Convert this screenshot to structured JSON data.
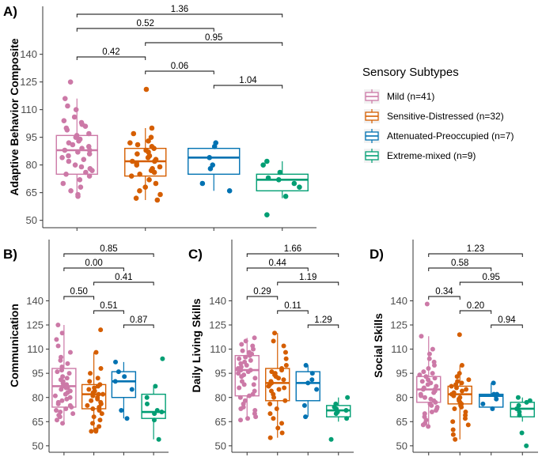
{
  "legend": {
    "title": "Sensory Subtypes",
    "items": [
      {
        "label": "Mild (n=41)",
        "color": "#CC79A7"
      },
      {
        "label": "Sensitive-Distressed (n=32)",
        "color": "#D55E00"
      },
      {
        "label": "Attenuated-Preoccupied (n=7)",
        "color": "#0072B2"
      },
      {
        "label": "Extreme-mixed (n=9)",
        "color": "#009E73"
      }
    ]
  },
  "chart_data": [
    {
      "type": "box",
      "panel": "A)",
      "ylabel": "Adaptive Behavior Composite",
      "yticks": [
        50,
        65,
        80,
        95,
        110,
        125,
        140
      ],
      "ylim": [
        46,
        166
      ],
      "groups": [
        "Mild",
        "Sensitive-Distressed",
        "Attenuated-Preoccupied",
        "Extreme-mixed"
      ],
      "boxes": [
        {
          "q1": 75,
          "median": 88,
          "q3": 96,
          "whisker_low": 63,
          "whisker_high": 116,
          "points": [
            125,
            116,
            112,
            110,
            106,
            104,
            103,
            102,
            101,
            100,
            99,
            97,
            96,
            95,
            94,
            93,
            92,
            91,
            90,
            89,
            88,
            88,
            87,
            86,
            85,
            84,
            83,
            82,
            80,
            79,
            78,
            77,
            76,
            75,
            74,
            72,
            70,
            68,
            66,
            64,
            63
          ]
        },
        {
          "q1": 74,
          "median": 82,
          "q3": 89,
          "whisker_low": 61,
          "whisker_high": 100,
          "points": [
            121,
            100,
            97,
            95,
            93,
            92,
            91,
            90,
            89,
            88,
            87,
            86,
            85,
            84,
            83,
            82,
            82,
            81,
            80,
            79,
            78,
            77,
            76,
            75,
            74,
            72,
            70,
            68,
            66,
            64,
            62,
            61
          ]
        },
        {
          "q1": 75,
          "median": 84,
          "q3": 89,
          "whisker_low": 66,
          "whisker_high": 92,
          "points": [
            92,
            90,
            84,
            80,
            78,
            70,
            66
          ]
        },
        {
          "q1": 66,
          "median": 72,
          "q3": 75,
          "whisker_low": 62,
          "whisker_high": 82,
          "points": [
            82,
            80,
            76,
            73,
            72,
            70,
            68,
            63,
            53
          ]
        }
      ],
      "comparisons": [
        {
          "from": 0,
          "to": 3,
          "label": "1.36"
        },
        {
          "from": 0,
          "to": 2,
          "label": "0.52"
        },
        {
          "from": 1,
          "to": 3,
          "label": "0.95"
        },
        {
          "from": 0,
          "to": 1,
          "label": "0.42"
        },
        {
          "from": 1,
          "to": 2,
          "label": "0.06"
        },
        {
          "from": 2,
          "to": 3,
          "label": "1.04"
        }
      ]
    },
    {
      "type": "box",
      "panel": "B)",
      "ylabel": "Communication",
      "yticks": [
        50,
        65,
        80,
        95,
        110,
        125,
        140
      ],
      "ylim": [
        46,
        178
      ],
      "groups": [
        "Mild",
        "Sensitive-Distressed",
        "Attenuated-Preoccupied",
        "Extreme-mixed"
      ],
      "boxes": [
        {
          "q1": 74,
          "median": 87,
          "q3": 98,
          "whisker_low": 64,
          "whisker_high": 125,
          "points": [
            125,
            120,
            116,
            112,
            108,
            105,
            103,
            101,
            99,
            97,
            96,
            95,
            93,
            92,
            91,
            90,
            89,
            88,
            87,
            86,
            86,
            85,
            84,
            83,
            82,
            81,
            80,
            79,
            78,
            77,
            76,
            75,
            74,
            73,
            72,
            71,
            70,
            69,
            68,
            66,
            64
          ]
        },
        {
          "q1": 73,
          "median": 82,
          "q3": 88,
          "whisker_low": 59,
          "whisker_high": 108,
          "points": [
            122,
            108,
            98,
            95,
            92,
            90,
            88,
            87,
            86,
            85,
            84,
            83,
            82,
            82,
            81,
            80,
            79,
            78,
            77,
            76,
            75,
            74,
            73,
            72,
            70,
            68,
            66,
            64,
            62,
            60,
            59,
            59
          ]
        },
        {
          "q1": 80,
          "median": 90,
          "q3": 96,
          "whisker_low": 67,
          "whisker_high": 102,
          "points": [
            102,
            96,
            93,
            90,
            85,
            72,
            67
          ]
        },
        {
          "q1": 67,
          "median": 71,
          "q3": 82,
          "whisker_low": 54,
          "whisker_high": 87,
          "points": [
            104,
            87,
            80,
            76,
            72,
            71,
            70,
            66,
            54
          ]
        }
      ],
      "comparisons": [
        {
          "from": 0,
          "to": 3,
          "label": "0.85"
        },
        {
          "from": 0,
          "to": 2,
          "label": "0.00"
        },
        {
          "from": 1,
          "to": 3,
          "label": "0.41"
        },
        {
          "from": 0,
          "to": 1,
          "label": "0.50"
        },
        {
          "from": 1,
          "to": 2,
          "label": "0.51"
        },
        {
          "from": 2,
          "to": 3,
          "label": "0.87"
        }
      ]
    },
    {
      "type": "box",
      "panel": "C)",
      "ylabel": "Daily Living Skills",
      "yticks": [
        50,
        65,
        80,
        95,
        110,
        125,
        140
      ],
      "ylim": [
        46,
        178
      ],
      "groups": [
        "Mild",
        "Sensitive-Distressed",
        "Attenuated-Preoccupied",
        "Extreme-mixed"
      ],
      "boxes": [
        {
          "q1": 81,
          "median": 97,
          "q3": 106,
          "whisker_low": 66,
          "whisker_high": 117,
          "points": [
            117,
            115,
            113,
            112,
            110,
            109,
            108,
            107,
            106,
            105,
            104,
            103,
            102,
            101,
            100,
            99,
            98,
            97,
            97,
            96,
            95,
            94,
            93,
            92,
            90,
            88,
            86,
            84,
            82,
            81,
            80,
            78,
            76,
            74,
            72,
            70,
            68,
            66,
            67,
            73,
            88
          ]
        },
        {
          "q1": 78,
          "median": 89,
          "q3": 98,
          "whisker_low": 55,
          "whisker_high": 120,
          "points": [
            120,
            115,
            112,
            108,
            104,
            100,
            98,
            97,
            96,
            95,
            94,
            93,
            92,
            91,
            90,
            89,
            88,
            87,
            86,
            85,
            84,
            82,
            80,
            78,
            76,
            73,
            70,
            67,
            64,
            61,
            58,
            55
          ]
        },
        {
          "q1": 78,
          "median": 89,
          "q3": 96,
          "whisker_low": 68,
          "whisker_high": 100,
          "points": [
            100,
            95,
            91,
            89,
            85,
            75,
            68
          ]
        },
        {
          "q1": 68,
          "median": 72,
          "q3": 75,
          "whisker_low": 65,
          "whisker_high": 80,
          "points": [
            80,
            76,
            74,
            73,
            72,
            71,
            70,
            67,
            54
          ]
        }
      ],
      "comparisons": [
        {
          "from": 0,
          "to": 3,
          "label": "1.66"
        },
        {
          "from": 0,
          "to": 2,
          "label": "0.44"
        },
        {
          "from": 1,
          "to": 3,
          "label": "1.19"
        },
        {
          "from": 0,
          "to": 1,
          "label": "0.29"
        },
        {
          "from": 1,
          "to": 2,
          "label": "0.11"
        },
        {
          "from": 2,
          "to": 3,
          "label": "1.29"
        }
      ]
    },
    {
      "type": "box",
      "panel": "D)",
      "ylabel": "Social Skills",
      "yticks": [
        50,
        65,
        80,
        95,
        110,
        125,
        140
      ],
      "ylim": [
        46,
        178
      ],
      "groups": [
        "Mild",
        "Sensitive-Distressed",
        "Attenuated-Preoccupied",
        "Extreme-mixed"
      ],
      "boxes": [
        {
          "q1": 77,
          "median": 85,
          "q3": 93,
          "whisker_low": 62,
          "whisker_high": 118,
          "points": [
            138,
            118,
            110,
            107,
            104,
            102,
            100,
            98,
            96,
            95,
            94,
            93,
            92,
            91,
            90,
            89,
            88,
            87,
            86,
            85,
            85,
            84,
            83,
            82,
            81,
            80,
            79,
            78,
            77,
            76,
            75,
            74,
            73,
            72,
            71,
            70,
            68,
            66,
            64,
            62,
            63
          ]
        },
        {
          "q1": 76,
          "median": 82,
          "q3": 87,
          "whisker_low": 54,
          "whisker_high": 100,
          "points": [
            119,
            100,
            95,
            93,
            91,
            90,
            89,
            88,
            87,
            86,
            85,
            84,
            83,
            82,
            82,
            81,
            80,
            79,
            78,
            77,
            76,
            75,
            74,
            73,
            71,
            69,
            67,
            65,
            63,
            60,
            57,
            54
          ]
        },
        {
          "q1": 74,
          "median": 81,
          "q3": 82,
          "whisker_low": 73,
          "whisker_high": 89,
          "points": [
            89,
            82,
            82,
            81,
            79,
            76,
            73
          ]
        },
        {
          "q1": 68,
          "median": 73,
          "q3": 77,
          "whisker_low": 65,
          "whisker_high": 80,
          "points": [
            80,
            78,
            77,
            75,
            73,
            71,
            69,
            58,
            50
          ]
        }
      ],
      "comparisons": [
        {
          "from": 0,
          "to": 3,
          "label": "1.23"
        },
        {
          "from": 0,
          "to": 2,
          "label": "0.58"
        },
        {
          "from": 1,
          "to": 3,
          "label": "0.95"
        },
        {
          "from": 0,
          "to": 1,
          "label": "0.34"
        },
        {
          "from": 1,
          "to": 2,
          "label": "0.20"
        },
        {
          "from": 2,
          "to": 3,
          "label": "0.94"
        }
      ]
    }
  ]
}
